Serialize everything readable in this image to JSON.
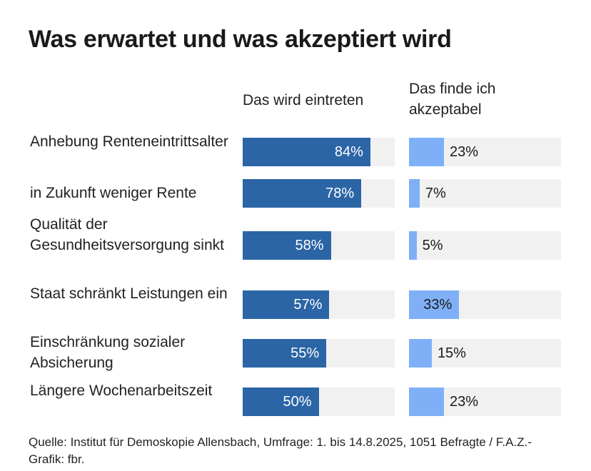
{
  "title": "Was erwartet und was akzeptiert wird",
  "columns": {
    "a": "Das wird eintreten",
    "b": "Das finde ich akzeptabel"
  },
  "source": "Quelle: Institut für Demoskopie Allensbach, Umfrage: 1. bis 14.8.2025, 1051 Befragte / F.A.Z.-Grafik: fbr.",
  "colors": {
    "eintreten": "#2b65a6",
    "akzeptabel": "#7fb0f7",
    "track": "#f1f1f1"
  },
  "chart_data": {
    "type": "bar",
    "orientation": "horizontal",
    "categories": [
      "Anhebung Renteneintrittsalter",
      "in Zukunft weniger Rente",
      "Qualität der Gesundheitsversorgung sinkt",
      "Staat schränkt Leistungen ein",
      "Einschränkung sozialer Absicherung",
      "Längere Wochenarbeitszeit"
    ],
    "series": [
      {
        "name": "Das wird eintreten",
        "values": [
          84,
          78,
          58,
          57,
          55,
          50
        ],
        "labels": [
          "84%",
          "78%",
          "58%",
          "57%",
          "55%",
          "50%"
        ]
      },
      {
        "name": "Das finde ich akzeptabel",
        "values": [
          23,
          7,
          5,
          33,
          15,
          23
        ],
        "labels": [
          "23%",
          "7%",
          "5%",
          "33%",
          "15%",
          "23%"
        ]
      }
    ],
    "xlim": [
      0,
      100
    ],
    "unit": "%"
  }
}
